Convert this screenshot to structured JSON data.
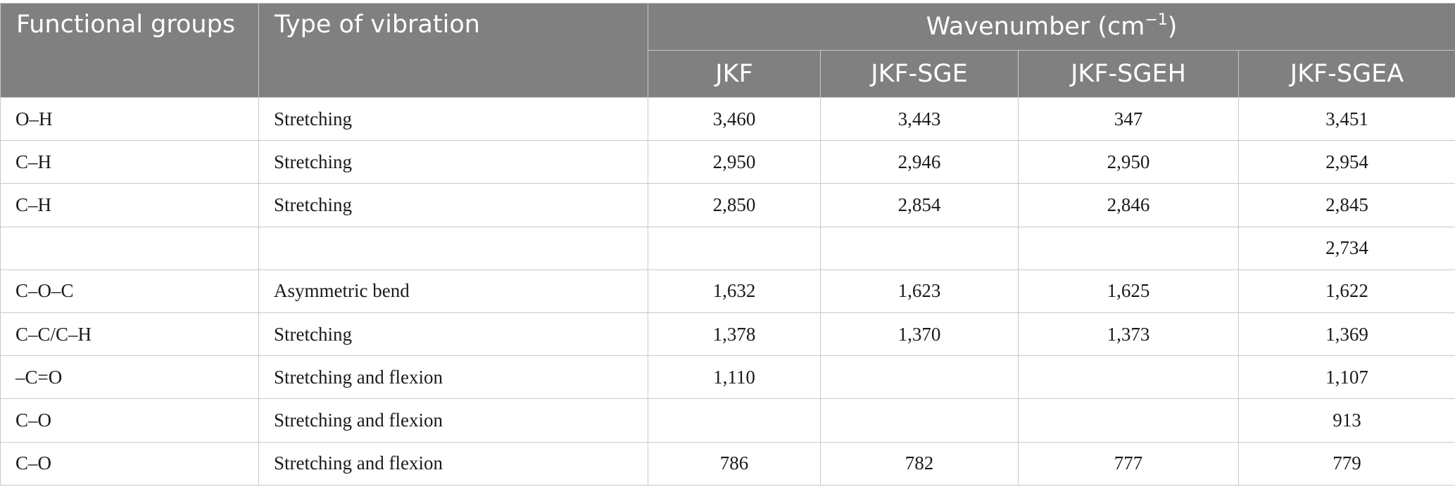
{
  "header": {
    "functional_groups": "Functional groups",
    "type_of_vibration": "Type of vibration",
    "wavenumber_prefix": "Wavenumber (cm",
    "wavenumber_sup": "−1",
    "wavenumber_suffix": ")",
    "samples": [
      "JKF",
      "JKF-SGE",
      "JKF-SGEH",
      "JKF-SGEA"
    ]
  },
  "rows": [
    {
      "group": "O–H",
      "vibration": "Stretching",
      "values": [
        "3,460",
        "3,443",
        "347",
        "3,451"
      ]
    },
    {
      "group": "C–H",
      "vibration": "Stretching",
      "values": [
        "2,950",
        "2,946",
        "2,950",
        "2,954"
      ]
    },
    {
      "group": "C–H",
      "vibration": "Stretching",
      "values": [
        "2,850",
        "2,854",
        "2,846",
        "2,845"
      ]
    },
    {
      "group": "",
      "vibration": "",
      "values": [
        "",
        "",
        "",
        "2,734"
      ]
    },
    {
      "group": "C–O–C",
      "vibration": "Asymmetric bend",
      "values": [
        "1,632",
        "1,623",
        "1,625",
        "1,622"
      ]
    },
    {
      "group": "C–C/C–H",
      "vibration": "Stretching",
      "values": [
        "1,378",
        "1,370",
        "1,373",
        "1,369"
      ]
    },
    {
      "group": "–C=O",
      "vibration": "Stretching and flexion",
      "values": [
        "1,110",
        "",
        "",
        "1,107"
      ]
    },
    {
      "group": "C–O",
      "vibration": "Stretching and flexion",
      "values": [
        "",
        "",
        "",
        "913"
      ]
    },
    {
      "group": "C–O",
      "vibration": "Stretching and flexion",
      "values": [
        "786",
        "782",
        "777",
        "779"
      ]
    }
  ]
}
